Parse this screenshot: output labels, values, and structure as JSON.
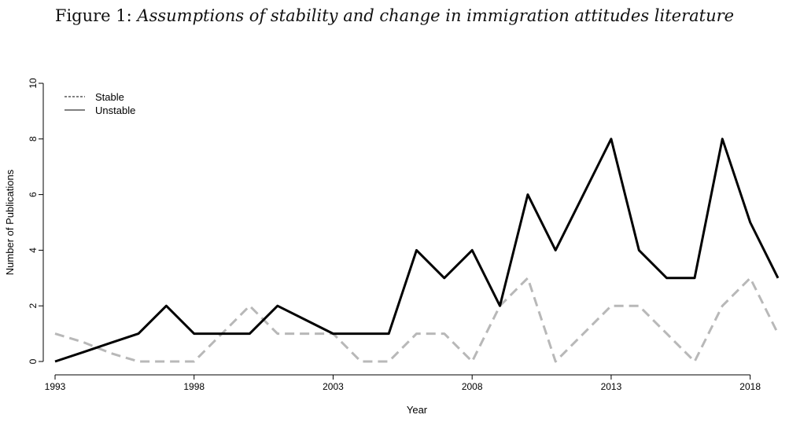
{
  "chart_data": {
    "type": "line",
    "title_prefix": "Figure 1:",
    "title": "Assumptions of stability and change in immigration attitudes literature",
    "xlabel": "Year",
    "ylabel": "Number of Publications",
    "xlim": [
      1993,
      2019
    ],
    "ylim": [
      0,
      10
    ],
    "x_ticks": [
      "1993",
      "1998",
      "2003",
      "2008",
      "2013",
      "2018"
    ],
    "y_ticks": [
      "0",
      "2",
      "4",
      "6",
      "8",
      "10"
    ],
    "x": [
      1993,
      1994,
      1995,
      1996,
      1997,
      1998,
      1999,
      2000,
      2001,
      2002,
      2003,
      2004,
      2005,
      2006,
      2007,
      2008,
      2009,
      2010,
      2011,
      2012,
      2013,
      2014,
      2015,
      2016,
      2017,
      2018,
      2019
    ],
    "series": [
      {
        "name": "Stable",
        "style": "dashed",
        "color": "#b8b8b8",
        "values": [
          1,
          0.7,
          0.3,
          0,
          0,
          0,
          1,
          2,
          1,
          1,
          1,
          0,
          0,
          1,
          1,
          0,
          2,
          3,
          0,
          1,
          2,
          2,
          1,
          0,
          2,
          3,
          1
        ]
      },
      {
        "name": "Unstable",
        "style": "solid",
        "color": "#000000",
        "values": [
          0,
          0.33,
          0.67,
          1,
          2,
          1,
          1,
          1,
          2,
          1.5,
          1,
          1,
          1,
          4,
          3,
          4,
          2,
          6,
          4,
          6,
          8,
          4,
          3,
          3,
          8,
          5,
          3
        ]
      }
    ],
    "legend": [
      {
        "label": "Stable",
        "style": "dashed"
      },
      {
        "label": "Unstable",
        "style": "solid"
      }
    ],
    "legend_position": "top-left",
    "grid": false
  }
}
